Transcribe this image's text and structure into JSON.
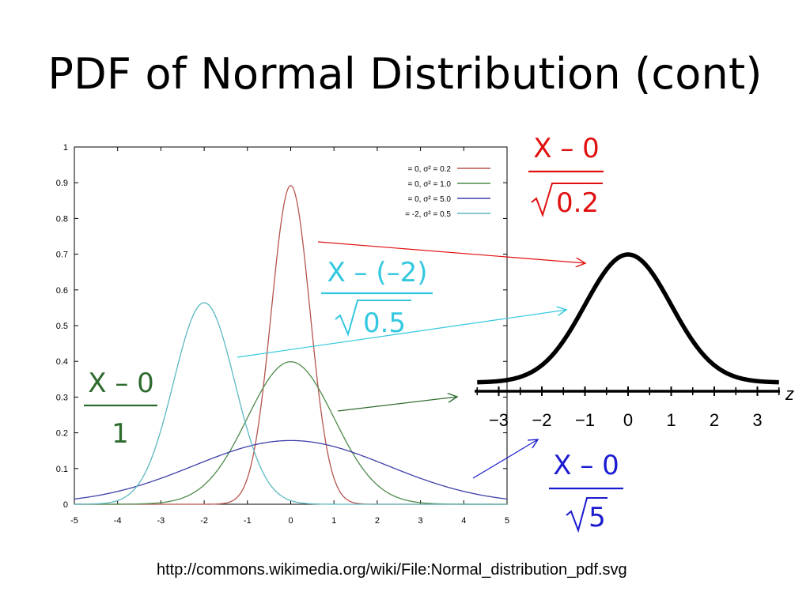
{
  "slide_title": "PDF of Normal Distribution (cont)",
  "source_url": "http://commons.wikimedia.org/wiki/File:Normal_distribution_pdf.svg",
  "chart_data": [
    {
      "type": "line",
      "title": "",
      "xlabel": "",
      "ylabel": "",
      "xlim": [
        -5,
        5
      ],
      "ylim": [
        0,
        1
      ],
      "x_ticks": [
        "-5",
        "-4",
        "-3",
        "-2",
        "-1",
        "0",
        "1",
        "2",
        "3",
        "4",
        "5"
      ],
      "y_ticks": [
        "0",
        "0.1",
        "0.2",
        "0.3",
        "0.4",
        "0.5",
        "0.6",
        "0.7",
        "0.8",
        "0.9",
        "1"
      ],
      "grid": false,
      "legend_position": "top-right",
      "series": [
        {
          "name": "= 0, σ² = 0.2",
          "mu": 0,
          "variance": 0.2,
          "color": "#b5544e"
        },
        {
          "name": "= 0, σ² = 1.0",
          "mu": 0,
          "variance": 1.0,
          "color": "#4e8a4a"
        },
        {
          "name": "= 0, σ² = 5.0",
          "mu": 0,
          "variance": 5.0,
          "color": "#3d3fa8"
        },
        {
          "name": "= -2, σ² = 0.5",
          "mu": -2,
          "variance": 0.5,
          "color": "#5cb8c0"
        }
      ]
    },
    {
      "type": "line",
      "title": "",
      "xlabel": "z",
      "ylabel": "",
      "xlim": [
        -3.5,
        3.5
      ],
      "x_ticks": [
        "−3",
        "−2",
        "−1",
        "0",
        "1",
        "2",
        "3"
      ],
      "series": [
        {
          "name": "",
          "mu": 0,
          "variance": 1.0,
          "color": "#000000"
        }
      ]
    }
  ],
  "fractions": {
    "red": {
      "numerator": "X – 0",
      "radicand": "0.2",
      "color": "#e01010"
    },
    "cyan": {
      "numerator": "X – (–2)",
      "radicand": "0.5",
      "color": "#33c8df"
    },
    "green": {
      "numerator": "X – 0",
      "denominator": "1",
      "color": "#2e6b2e"
    },
    "blue": {
      "numerator": "X – 0",
      "radicand": "5",
      "color": "#1a1ad0"
    }
  }
}
